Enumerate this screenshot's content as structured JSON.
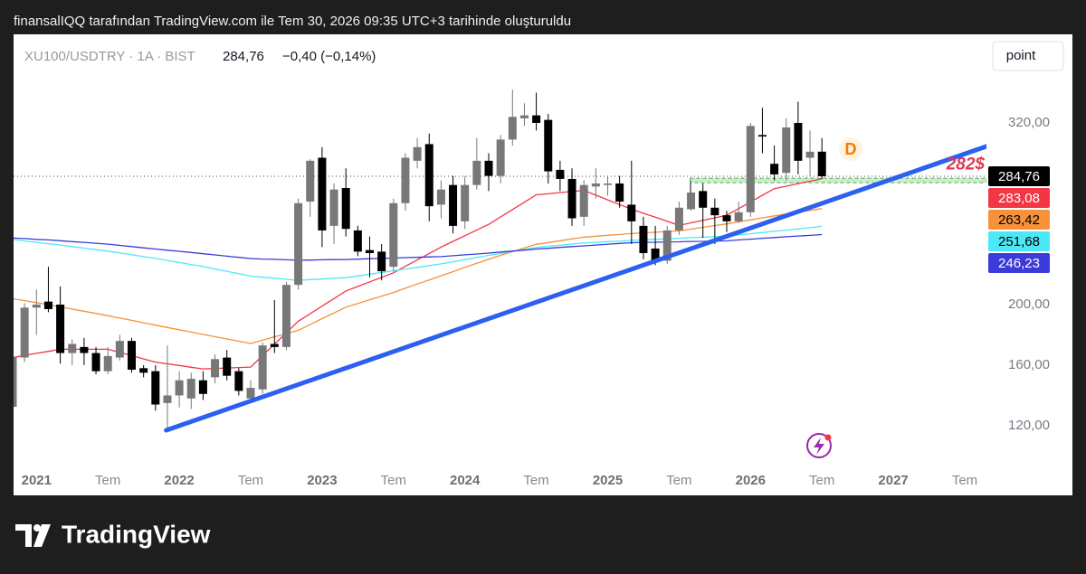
{
  "header": {
    "caption": "finansalIQQ tarafından TradingView.com ile Tem 30, 2026 09:35 UTC+3 tarihinde oluşturuldu"
  },
  "brand": "TradingView",
  "chart_data": {
    "type": "candlestick",
    "symbol": "XU100/USDTRY · 1A · BIST",
    "last": "284,76",
    "change": "−0,40 (−0,14%)",
    "button": "point",
    "marker": "D",
    "categories": [
      null,
      null,
      "2021",
      null,
      null,
      null,
      null,
      null,
      "Tem",
      null,
      null,
      null,
      null,
      null,
      "2022",
      null,
      null,
      null,
      null,
      null,
      "Tem",
      null,
      null,
      null,
      null,
      null,
      "2023",
      null,
      null,
      null,
      null,
      null,
      "Tem",
      null,
      null,
      null,
      null,
      null,
      "2024",
      null,
      null,
      null,
      null,
      null,
      "Tem",
      null,
      null,
      null,
      null,
      null,
      "2025",
      null,
      null,
      null,
      null,
      null,
      "Tem",
      null,
      null,
      null,
      null,
      null,
      "2026",
      null,
      null,
      null,
      null,
      null,
      "Tem",
      null,
      null,
      null,
      null,
      null,
      "2027",
      null,
      null,
      null,
      null,
      null,
      "Tem"
    ],
    "open": [
      132.5,
      165,
      198,
      202,
      200,
      168,
      172,
      168,
      156,
      165,
      176,
      158,
      156,
      135,
      140,
      138,
      150,
      152,
      165,
      156,
      138,
      144,
      174,
      172,
      213,
      268,
      297,
      252,
      277,
      249,
      236,
      235,
      225,
      267,
      295,
      306,
      266,
      279,
      255,
      279,
      295,
      285,
      309,
      323,
      325,
      322,
      289,
      283,
      258,
      278,
      279,
      280,
      266,
      252,
      237,
      229,
      249,
      263,
      275,
      264,
      259,
      255,
      261,
      312,
      293,
      287,
      320,
      297,
      301,
      null,
      null,
      null,
      null,
      null,
      null,
      null,
      null,
      null,
      null,
      null,
      null
    ],
    "high": [
      168,
      201,
      210,
      225,
      212,
      177,
      178,
      172,
      172,
      180,
      178,
      160,
      160,
      173,
      156,
      155,
      156,
      167,
      170,
      158,
      150,
      175,
      203,
      215,
      270,
      296,
      304,
      280,
      290,
      252,
      245,
      240,
      270,
      300,
      310,
      313,
      282,
      285,
      285,
      310,
      300,
      312,
      342,
      333,
      340,
      326,
      295,
      290,
      282,
      290,
      285,
      285,
      295,
      258,
      252,
      252,
      268,
      282,
      280,
      270,
      262,
      268,
      320,
      330,
      305,
      323,
      334,
      315,
      310,
      null,
      null,
      null,
      null,
      null,
      null,
      null,
      null,
      null,
      null,
      null,
      null
    ],
    "low": [
      129.6,
      162,
      180,
      195,
      161,
      160,
      160,
      154,
      154,
      163,
      155,
      152,
      130,
      116,
      132,
      131,
      137,
      148,
      150,
      140,
      135,
      141,
      168,
      170,
      210,
      258,
      238,
      240,
      245,
      232,
      218,
      216,
      222,
      262,
      290,
      255,
      257,
      247,
      250,
      276,
      275,
      280,
      305,
      318,
      315,
      280,
      275,
      252,
      252,
      270,
      272,
      264,
      240,
      230,
      226,
      227,
      246,
      262,
      244,
      240,
      248,
      254,
      258,
      300,
      282,
      282,
      286,
      285,
      283,
      null,
      null,
      null,
      null,
      null,
      null,
      null,
      null,
      null,
      null,
      null,
      null
    ],
    "close": [
      165.4,
      198,
      200,
      197,
      168,
      174,
      168,
      156,
      166,
      176,
      157,
      155,
      134,
      140,
      150,
      151,
      141,
      164,
      153,
      143,
      145,
      173,
      172,
      213,
      267,
      295,
      249,
      276,
      250,
      235,
      234,
      222,
      267,
      297,
      304,
      265,
      276,
      252,
      279,
      295,
      285,
      309,
      324,
      325,
      320,
      288,
      283,
      257,
      279,
      280,
      280,
      268,
      255,
      234,
      229,
      249,
      264,
      274,
      264,
      259,
      255,
      261,
      318,
      311,
      286,
      317,
      295,
      301,
      284.76,
      null,
      null,
      null,
      null,
      null,
      null,
      null,
      null,
      null,
      null,
      null,
      null
    ],
    "close_label": "284,76",
    "up_color": "#787878",
    "down_color": "#000000",
    "series": [
      {
        "color": "#f23645",
        "last_label": "283,08",
        "values": [
          165,
          166.4,
          167.8,
          169.1,
          170.5,
          170.5,
          170.5,
          170.5,
          170.5,
          168.4,
          166.3,
          164.1,
          162,
          160.9,
          159.8,
          158.6,
          157.5,
          157.8,
          158.1,
          158.4,
          158.7,
          166.3,
          173.9,
          181.4,
          189,
          194,
          199,
          204,
          209,
          212,
          215,
          218,
          221,
          225.3,
          229.5,
          233.8,
          238,
          241.8,
          245.5,
          249.3,
          253,
          257.9,
          262.8,
          267.6,
          272.5,
          273.2,
          274,
          274.7,
          275.4,
          272.3,
          269.2,
          266.1,
          263,
          260.3,
          257.7,
          255,
          252.3,
          254,
          255.7,
          257.3,
          259,
          263.4,
          267.8,
          272.2,
          276.6,
          278.2,
          279.9,
          281.5,
          283.08,
          null,
          null,
          null,
          null,
          null,
          null,
          null,
          null,
          null,
          null,
          null,
          null
        ]
      },
      {
        "color": "#f7913a",
        "last_label": "263,42",
        "values": [
          204,
          202.6,
          201.3,
          199.9,
          198.5,
          197,
          195.6,
          194.1,
          192.7,
          191.1,
          189.6,
          188,
          186.4,
          184.9,
          183.4,
          181.8,
          180.3,
          178.8,
          177.3,
          175.8,
          174.3,
          176.5,
          178.7,
          180.8,
          183,
          186.8,
          190.7,
          194.5,
          198.3,
          200.7,
          203.2,
          205.6,
          208,
          210.8,
          213.6,
          216.3,
          219.1,
          221.8,
          224.6,
          227.3,
          230,
          232.5,
          234.9,
          237.4,
          239.8,
          241,
          242.2,
          243.4,
          244.6,
          245.2,
          245.8,
          246.3,
          246.9,
          247.4,
          247.8,
          248.3,
          248.7,
          249.9,
          251,
          252.2,
          253.3,
          254.6,
          256,
          257.3,
          258.6,
          259.8,
          261,
          262.2,
          263.42,
          null,
          null,
          null,
          null,
          null,
          null,
          null,
          null,
          null,
          null,
          null,
          null
        ]
      },
      {
        "color": "#4de8f5",
        "last_label": "251,68",
        "values": [
          243,
          242.1,
          241.1,
          240.2,
          239.3,
          238.3,
          237.3,
          236.3,
          235.3,
          234.1,
          232.9,
          231.7,
          230.5,
          229.2,
          227.8,
          226.5,
          225.1,
          223.5,
          222,
          220.4,
          218.8,
          218.1,
          217.4,
          216.7,
          216,
          216.5,
          216.9,
          217.4,
          217.8,
          218.9,
          220.1,
          221.2,
          222.3,
          223.5,
          224.6,
          225.8,
          226.9,
          228.3,
          229.7,
          231.1,
          232.5,
          233.8,
          235.1,
          236.4,
          237.7,
          238.5,
          239.2,
          240,
          240.7,
          241.1,
          241.6,
          242,
          242.4,
          242.8,
          243.1,
          243.5,
          243.8,
          244.2,
          244.5,
          244.9,
          245.2,
          246,
          246.8,
          247.6,
          248.4,
          249.2,
          250,
          250.8,
          251.68,
          null,
          null,
          null,
          null,
          null,
          null,
          null,
          null,
          null,
          null,
          null,
          null
        ]
      },
      {
        "color": "#3b3bd9",
        "last_label": "246,23",
        "values": [
          244,
          243.6,
          243.1,
          242.7,
          242.2,
          241.6,
          241.1,
          240.5,
          239.9,
          239.1,
          238.3,
          237.5,
          236.7,
          235.9,
          235.2,
          234.4,
          233.6,
          232.8,
          232,
          231.2,
          230.4,
          230.1,
          229.9,
          229.6,
          229.3,
          229.4,
          229.6,
          229.7,
          229.8,
          230,
          230.3,
          230.5,
          230.7,
          231,
          231.2,
          231.5,
          231.7,
          232.3,
          232.9,
          233.4,
          234,
          234.7,
          235.4,
          236,
          236.7,
          237.2,
          237.8,
          238.3,
          238.8,
          239.3,
          239.9,
          240.4,
          240.9,
          241.1,
          241.2,
          241.4,
          241.5,
          241.7,
          241.8,
          242,
          242.1,
          242.7,
          243.2,
          243.8,
          244.3,
          244.8,
          245.3,
          245.7,
          246.23,
          null,
          null,
          null,
          null,
          null,
          null,
          null,
          null,
          null,
          null,
          null,
          null
        ]
      }
    ],
    "ylim": [
      74,
      378.5
    ],
    "yticks": [
      {
        "value": 120,
        "label": "120,00"
      },
      {
        "value": 160,
        "label": "160,00"
      },
      {
        "value": 200,
        "label": "200,00"
      },
      {
        "value": 320,
        "label": "320,00"
      }
    ],
    "trend_line": {
      "color": "#2d5ff0",
      "start": 117,
      "end": 304.5
    },
    "level": {
      "value": 282,
      "label": "282$",
      "color": "#e0384f"
    }
  }
}
